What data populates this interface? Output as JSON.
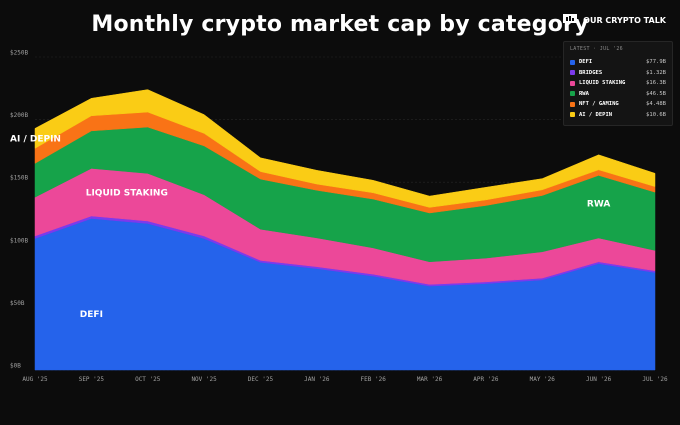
{
  "title": "Monthly crypto market cap by category",
  "brand": {
    "name": "OUR CRYPTO TALK",
    "icon": "brand-logo-icon"
  },
  "legend": {
    "title": "LATEST · JUL '26"
  },
  "colors": {
    "DEFI": "#2563eb",
    "BRIDGES": "#7c3aed",
    "LIQUID STAKING": "#ec4899",
    "RWA": "#16a34a",
    "NFT / GAMING": "#f97316",
    "AI / DEPIN": "#facc15"
  },
  "chart_data": {
    "type": "area",
    "stacked": true,
    "title": "Monthly crypto market cap by category",
    "xlabel": "",
    "ylabel": "",
    "categories": [
      "AUG '25",
      "SEP '25",
      "OCT '25",
      "NOV '25",
      "DEC '25",
      "JAN '26",
      "FEB '26",
      "MAR '26",
      "APR '26",
      "MAY '26",
      "JUN '26",
      "JUL '26"
    ],
    "yticks": [
      0,
      50,
      100,
      150,
      200,
      250
    ],
    "ytick_labels": [
      "$0B",
      "$50B",
      "$100B",
      "$150B",
      "$200B",
      "$250B"
    ],
    "ylim": [
      0,
      250
    ],
    "grid": true,
    "legend_position": "top-right",
    "series": [
      {
        "name": "DEFI",
        "latest_label": "$77.9B",
        "values": [
          105,
          121,
          117,
          105,
          86,
          81,
          75,
          67,
          69,
          72,
          85,
          77.9
        ]
      },
      {
        "name": "BRIDGES",
        "latest_label": "$1.32B",
        "values": [
          2,
          2,
          2,
          2,
          1.5,
          1.5,
          1.5,
          1.4,
          1.4,
          1.4,
          1.4,
          1.32
        ]
      },
      {
        "name": "LIQUID STAKING",
        "latest_label": "$16.3B",
        "values": [
          31,
          38,
          38,
          33,
          25,
          23,
          21,
          18,
          19,
          21,
          19,
          16.3
        ]
      },
      {
        "name": "RWA",
        "latest_label": "$46.5B",
        "values": [
          27,
          30,
          37,
          39,
          40,
          38,
          39,
          39,
          42,
          45,
          50,
          46.5
        ]
      },
      {
        "name": "NFT / GAMING",
        "latest_label": "$4.48B",
        "values": [
          12,
          12,
          12,
          10,
          6,
          5,
          5,
          4.5,
          4.5,
          4.5,
          4.5,
          4.48
        ]
      },
      {
        "name": "AI / DEPIN",
        "latest_label": "$10.6B",
        "values": [
          16,
          14,
          18,
          15,
          11,
          11,
          10,
          9,
          10,
          9,
          12,
          10.6
        ]
      }
    ],
    "annotations": [
      {
        "text": "AI / DEPIN",
        "series": "AI / DEPIN"
      },
      {
        "text": "LIQUID STAKING",
        "series": "LIQUID STAKING"
      },
      {
        "text": "DEFI",
        "series": "DEFI"
      },
      {
        "text": "RWA",
        "series": "RWA"
      }
    ]
  }
}
